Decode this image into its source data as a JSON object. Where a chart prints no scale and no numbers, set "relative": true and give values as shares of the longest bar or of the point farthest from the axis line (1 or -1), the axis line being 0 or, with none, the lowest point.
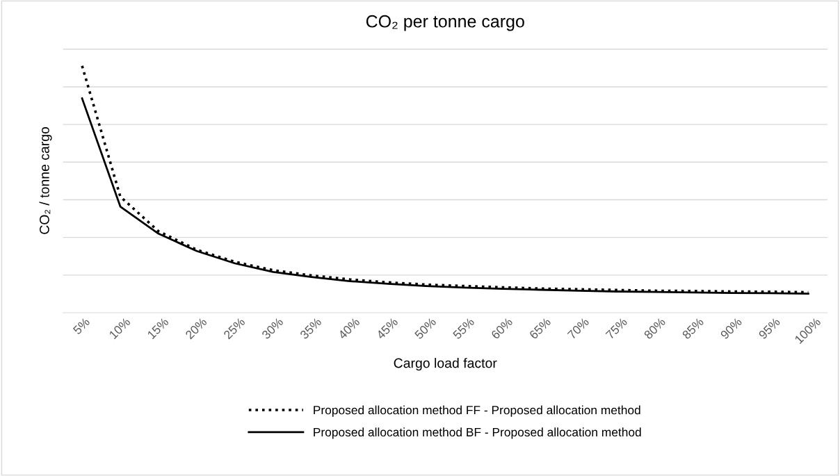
{
  "chart_data": {
    "type": "line",
    "title": "CO₂ per tonne cargo",
    "xlabel": "Cargo load factor",
    "ylabel": "CO₂ / tonne cargo",
    "categories": [
      "5%",
      "10%",
      "15%",
      "20%",
      "25%",
      "30%",
      "35%",
      "40%",
      "45%",
      "50%",
      "55%",
      "60%",
      "65%",
      "70%",
      "75%",
      "80%",
      "85%",
      "90%",
      "95%",
      "100%"
    ],
    "relative": true,
    "grid": "y",
    "legend": "bottom",
    "marker": "none",
    "series": [
      {
        "name": "Proposed allocation method FF - Proposed allocation method",
        "color": "#000000",
        "line_style": "dotted",
        "values": [
          1.0,
          0.47,
          0.33,
          0.255,
          0.206,
          0.172,
          0.151,
          0.135,
          0.123,
          0.114,
          0.108,
          0.103,
          0.098,
          0.095,
          0.092,
          0.089,
          0.088,
          0.086,
          0.085,
          0.083
        ]
      },
      {
        "name": "Proposed allocation method BF - Proposed allocation method",
        "color": "#000000",
        "line_style": "solid",
        "values": [
          0.868,
          0.43,
          0.32,
          0.25,
          0.2,
          0.165,
          0.145,
          0.128,
          0.117,
          0.108,
          0.102,
          0.097,
          0.093,
          0.089,
          0.086,
          0.084,
          0.082,
          0.08,
          0.079,
          0.077
        ]
      }
    ]
  }
}
